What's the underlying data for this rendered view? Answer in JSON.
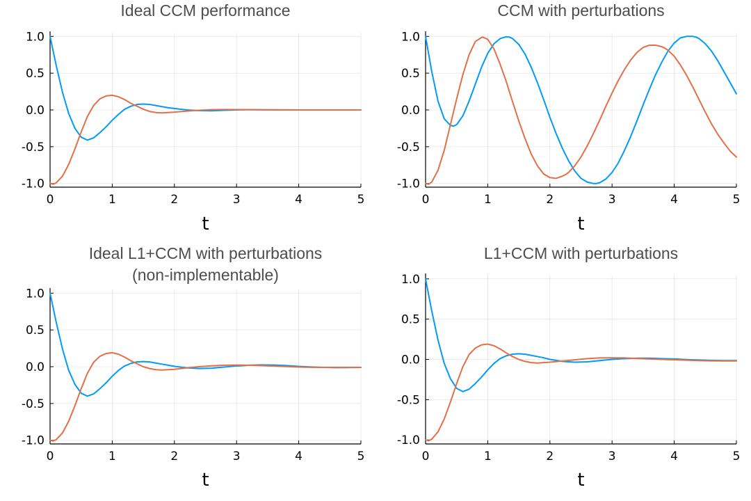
{
  "chart_data": [
    {
      "type": "line",
      "title": [
        "Ideal CCM performance"
      ],
      "xlabel": "t",
      "ylabel": "",
      "xlim": [
        0,
        5
      ],
      "ylim": [
        -1.05,
        1.05
      ],
      "xticks": [
        0,
        1,
        2,
        3,
        4,
        5
      ],
      "yticks": [
        -1.0,
        -0.5,
        0.0,
        0.5,
        1.0
      ],
      "ytick_labels": [
        "-1.0",
        "-0.5",
        "0.0",
        "0.5",
        "1.0"
      ],
      "grid": true,
      "legend": "none",
      "series": [
        {
          "color": "#009af9",
          "x": [
            0,
            0.1,
            0.2,
            0.3,
            0.4,
            0.5,
            0.6,
            0.7,
            0.8,
            0.9,
            1.0,
            1.1,
            1.2,
            1.3,
            1.4,
            1.5,
            1.6,
            1.7,
            1.8,
            1.9,
            2.0,
            2.2,
            2.4,
            2.6,
            2.8,
            3.0,
            3.2,
            3.5,
            4.0,
            4.5,
            5.0
          ],
          "values": [
            1.0,
            0.6,
            0.24,
            -0.05,
            -0.25,
            -0.37,
            -0.41,
            -0.38,
            -0.31,
            -0.23,
            -0.14,
            -0.06,
            0.01,
            0.05,
            0.075,
            0.08,
            0.075,
            0.06,
            0.045,
            0.03,
            0.02,
            0.0,
            -0.01,
            -0.012,
            -0.005,
            0.0,
            0.003,
            0.002,
            0.0,
            0.0,
            0.0
          ]
        },
        {
          "color": "#e26f46",
          "x": [
            0,
            0.05,
            0.1,
            0.2,
            0.3,
            0.4,
            0.5,
            0.6,
            0.7,
            0.8,
            0.9,
            1.0,
            1.1,
            1.2,
            1.3,
            1.4,
            1.5,
            1.6,
            1.7,
            1.8,
            1.9,
            2.0,
            2.2,
            2.4,
            2.6,
            2.8,
            3.0,
            3.2,
            3.5,
            4.0,
            4.5,
            5.0
          ],
          "values": [
            -1.0,
            -1.01,
            -0.99,
            -0.9,
            -0.74,
            -0.53,
            -0.3,
            -0.09,
            0.06,
            0.15,
            0.19,
            0.2,
            0.18,
            0.14,
            0.09,
            0.05,
            0.01,
            -0.02,
            -0.035,
            -0.04,
            -0.035,
            -0.03,
            -0.015,
            -0.005,
            0.004,
            0.006,
            0.005,
            0.003,
            0.001,
            0.0,
            0.0,
            0.0
          ]
        }
      ]
    },
    {
      "type": "line",
      "title": [
        "CCM with perturbations"
      ],
      "xlabel": "t",
      "ylabel": "",
      "xlim": [
        0,
        5
      ],
      "ylim": [
        -1.05,
        1.05
      ],
      "xticks": [
        0,
        1,
        2,
        3,
        4,
        5
      ],
      "yticks": [
        -1.0,
        -0.5,
        0.0,
        0.5,
        1.0
      ],
      "ytick_labels": [
        "-1.0",
        "-0.5",
        "0.0",
        "0.5",
        "1.0"
      ],
      "grid": true,
      "legend": "none",
      "series": [
        {
          "color": "#009af9",
          "x": [
            0,
            0.1,
            0.2,
            0.3,
            0.4,
            0.45,
            0.5,
            0.6,
            0.7,
            0.8,
            0.9,
            1.0,
            1.1,
            1.2,
            1.3,
            1.35,
            1.4,
            1.5,
            1.6,
            1.7,
            1.8,
            1.9,
            2.0,
            2.1,
            2.2,
            2.3,
            2.4,
            2.5,
            2.6,
            2.7,
            2.75,
            2.8,
            2.9,
            3.0,
            3.1,
            3.2,
            3.3,
            3.4,
            3.5,
            3.6,
            3.7,
            3.8,
            3.9,
            4.0,
            4.1,
            4.2,
            4.3,
            4.35,
            4.4,
            4.5,
            4.6,
            4.7,
            4.8,
            4.9,
            5.0
          ],
          "values": [
            1.0,
            0.52,
            0.12,
            -0.12,
            -0.21,
            -0.22,
            -0.2,
            -0.08,
            0.12,
            0.35,
            0.58,
            0.77,
            0.9,
            0.97,
            0.995,
            0.99,
            0.97,
            0.89,
            0.76,
            0.58,
            0.37,
            0.14,
            -0.1,
            -0.32,
            -0.52,
            -0.69,
            -0.83,
            -0.93,
            -0.98,
            -1.0,
            -1.0,
            -0.99,
            -0.94,
            -0.85,
            -0.72,
            -0.55,
            -0.36,
            -0.15,
            0.07,
            0.28,
            0.48,
            0.65,
            0.8,
            0.91,
            0.98,
            1.0,
            1.0,
            0.99,
            0.97,
            0.9,
            0.8,
            0.67,
            0.52,
            0.37,
            0.22
          ]
        },
        {
          "color": "#e26f46",
          "x": [
            0,
            0.05,
            0.1,
            0.2,
            0.3,
            0.4,
            0.5,
            0.6,
            0.7,
            0.8,
            0.9,
            0.92,
            1.0,
            1.1,
            1.2,
            1.3,
            1.4,
            1.5,
            1.6,
            1.7,
            1.8,
            1.9,
            2.0,
            2.1,
            2.2,
            2.25,
            2.3,
            2.4,
            2.5,
            2.6,
            2.7,
            2.8,
            2.9,
            3.0,
            3.1,
            3.2,
            3.3,
            3.4,
            3.5,
            3.6,
            3.7,
            3.8,
            3.85,
            3.9,
            4.0,
            4.1,
            4.2,
            4.3,
            4.4,
            4.5,
            4.6,
            4.7,
            4.8,
            4.9,
            5.0
          ],
          "values": [
            -1.0,
            -1.01,
            -0.98,
            -0.82,
            -0.55,
            -0.2,
            0.15,
            0.48,
            0.75,
            0.93,
            0.985,
            0.99,
            0.96,
            0.83,
            0.62,
            0.38,
            0.11,
            -0.15,
            -0.39,
            -0.6,
            -0.76,
            -0.87,
            -0.92,
            -0.93,
            -0.9,
            -0.88,
            -0.85,
            -0.76,
            -0.64,
            -0.49,
            -0.32,
            -0.14,
            0.05,
            0.23,
            0.4,
            0.55,
            0.68,
            0.78,
            0.85,
            0.88,
            0.88,
            0.86,
            0.84,
            0.81,
            0.73,
            0.61,
            0.47,
            0.31,
            0.14,
            -0.03,
            -0.19,
            -0.33,
            -0.45,
            -0.56,
            -0.64
          ]
        }
      ]
    },
    {
      "type": "line",
      "title": [
        "Ideal L1+CCM with perturbations",
        "(non-implementable)"
      ],
      "xlabel": "t",
      "ylabel": "",
      "xlim": [
        0,
        5
      ],
      "ylim": [
        -1.05,
        1.05
      ],
      "xticks": [
        0,
        1,
        2,
        3,
        4,
        5
      ],
      "yticks": [
        -1.0,
        -0.5,
        0.0,
        0.5,
        1.0
      ],
      "ytick_labels": [
        "-1.0",
        "-0.5",
        "0.0",
        "0.5",
        "1.0"
      ],
      "grid": true,
      "legend": "none",
      "series": [
        {
          "color": "#009af9",
          "x": [
            0,
            0.1,
            0.2,
            0.3,
            0.4,
            0.5,
            0.6,
            0.7,
            0.8,
            0.9,
            1.0,
            1.1,
            1.2,
            1.3,
            1.4,
            1.5,
            1.6,
            1.7,
            1.8,
            1.9,
            2.0,
            2.2,
            2.4,
            2.6,
            2.8,
            3.0,
            3.2,
            3.4,
            3.6,
            3.8,
            4.0,
            4.2,
            4.4,
            4.6,
            4.8,
            5.0
          ],
          "values": [
            1.0,
            0.6,
            0.24,
            -0.05,
            -0.24,
            -0.36,
            -0.4,
            -0.37,
            -0.3,
            -0.22,
            -0.13,
            -0.05,
            0.01,
            0.045,
            0.065,
            0.07,
            0.065,
            0.05,
            0.035,
            0.02,
            0.005,
            -0.015,
            -0.025,
            -0.02,
            -0.005,
            0.01,
            0.02,
            0.025,
            0.022,
            0.015,
            0.005,
            -0.003,
            -0.01,
            -0.013,
            -0.012,
            -0.01
          ]
        },
        {
          "color": "#e26f46",
          "x": [
            0,
            0.05,
            0.1,
            0.2,
            0.3,
            0.4,
            0.5,
            0.6,
            0.7,
            0.8,
            0.9,
            1.0,
            1.1,
            1.2,
            1.3,
            1.4,
            1.5,
            1.6,
            1.7,
            1.8,
            1.9,
            2.0,
            2.2,
            2.4,
            2.6,
            2.8,
            3.0,
            3.2,
            3.4,
            3.6,
            3.8,
            4.0,
            4.2,
            4.4,
            4.6,
            4.8,
            5.0
          ],
          "values": [
            -1.0,
            -1.01,
            -0.99,
            -0.9,
            -0.74,
            -0.53,
            -0.3,
            -0.09,
            0.06,
            0.14,
            0.18,
            0.19,
            0.17,
            0.13,
            0.08,
            0.04,
            0.0,
            -0.025,
            -0.04,
            -0.045,
            -0.04,
            -0.035,
            -0.015,
            0.0,
            0.012,
            0.02,
            0.022,
            0.02,
            0.015,
            0.008,
            0.002,
            -0.005,
            -0.008,
            -0.01,
            -0.01,
            -0.01,
            -0.01
          ]
        }
      ]
    },
    {
      "type": "line",
      "title": [
        "L1+CCM with perturbations"
      ],
      "xlabel": "t",
      "ylabel": "",
      "xlim": [
        0,
        5
      ],
      "ylim": [
        -1.05,
        1.05
      ],
      "xticks": [
        0,
        1,
        2,
        3,
        4,
        5
      ],
      "yticks": [
        -1.0,
        -0.5,
        0.0,
        0.5,
        1.0
      ],
      "ytick_labels": [
        "-1.0",
        "-0.5",
        "0.0",
        "0.5",
        "1.0"
      ],
      "grid": true,
      "legend": "none",
      "series": [
        {
          "color": "#009af9",
          "x": [
            0,
            0.1,
            0.2,
            0.3,
            0.4,
            0.5,
            0.6,
            0.7,
            0.8,
            0.9,
            1.0,
            1.1,
            1.2,
            1.3,
            1.4,
            1.5,
            1.6,
            1.7,
            1.8,
            1.9,
            2.0,
            2.2,
            2.4,
            2.6,
            2.8,
            3.0,
            3.2,
            3.4,
            3.6,
            3.8,
            4.0,
            4.2,
            4.4,
            4.6,
            4.8,
            5.0
          ],
          "values": [
            1.0,
            0.6,
            0.24,
            -0.05,
            -0.24,
            -0.36,
            -0.4,
            -0.37,
            -0.3,
            -0.22,
            -0.13,
            -0.05,
            0.01,
            0.045,
            0.065,
            0.07,
            0.065,
            0.05,
            0.035,
            0.02,
            0.0,
            -0.025,
            -0.035,
            -0.03,
            -0.015,
            0.0,
            0.01,
            0.015,
            0.015,
            0.01,
            0.005,
            -0.002,
            -0.008,
            -0.013,
            -0.015,
            -0.015
          ]
        },
        {
          "color": "#e26f46",
          "x": [
            0,
            0.05,
            0.1,
            0.2,
            0.3,
            0.4,
            0.5,
            0.6,
            0.7,
            0.8,
            0.9,
            1.0,
            1.1,
            1.2,
            1.3,
            1.4,
            1.5,
            1.6,
            1.7,
            1.8,
            1.9,
            2.0,
            2.2,
            2.4,
            2.6,
            2.8,
            3.0,
            3.2,
            3.4,
            3.6,
            3.8,
            4.0,
            4.2,
            4.4,
            4.6,
            4.8,
            5.0
          ],
          "values": [
            -1.0,
            -1.01,
            -0.99,
            -0.9,
            -0.74,
            -0.53,
            -0.3,
            -0.09,
            0.06,
            0.14,
            0.18,
            0.19,
            0.17,
            0.13,
            0.08,
            0.035,
            0.0,
            -0.025,
            -0.04,
            -0.045,
            -0.04,
            -0.035,
            -0.02,
            -0.005,
            0.01,
            0.018,
            0.02,
            0.018,
            0.012,
            0.005,
            0.0,
            -0.005,
            -0.01,
            -0.015,
            -0.018,
            -0.02,
            -0.02
          ]
        }
      ]
    }
  ]
}
